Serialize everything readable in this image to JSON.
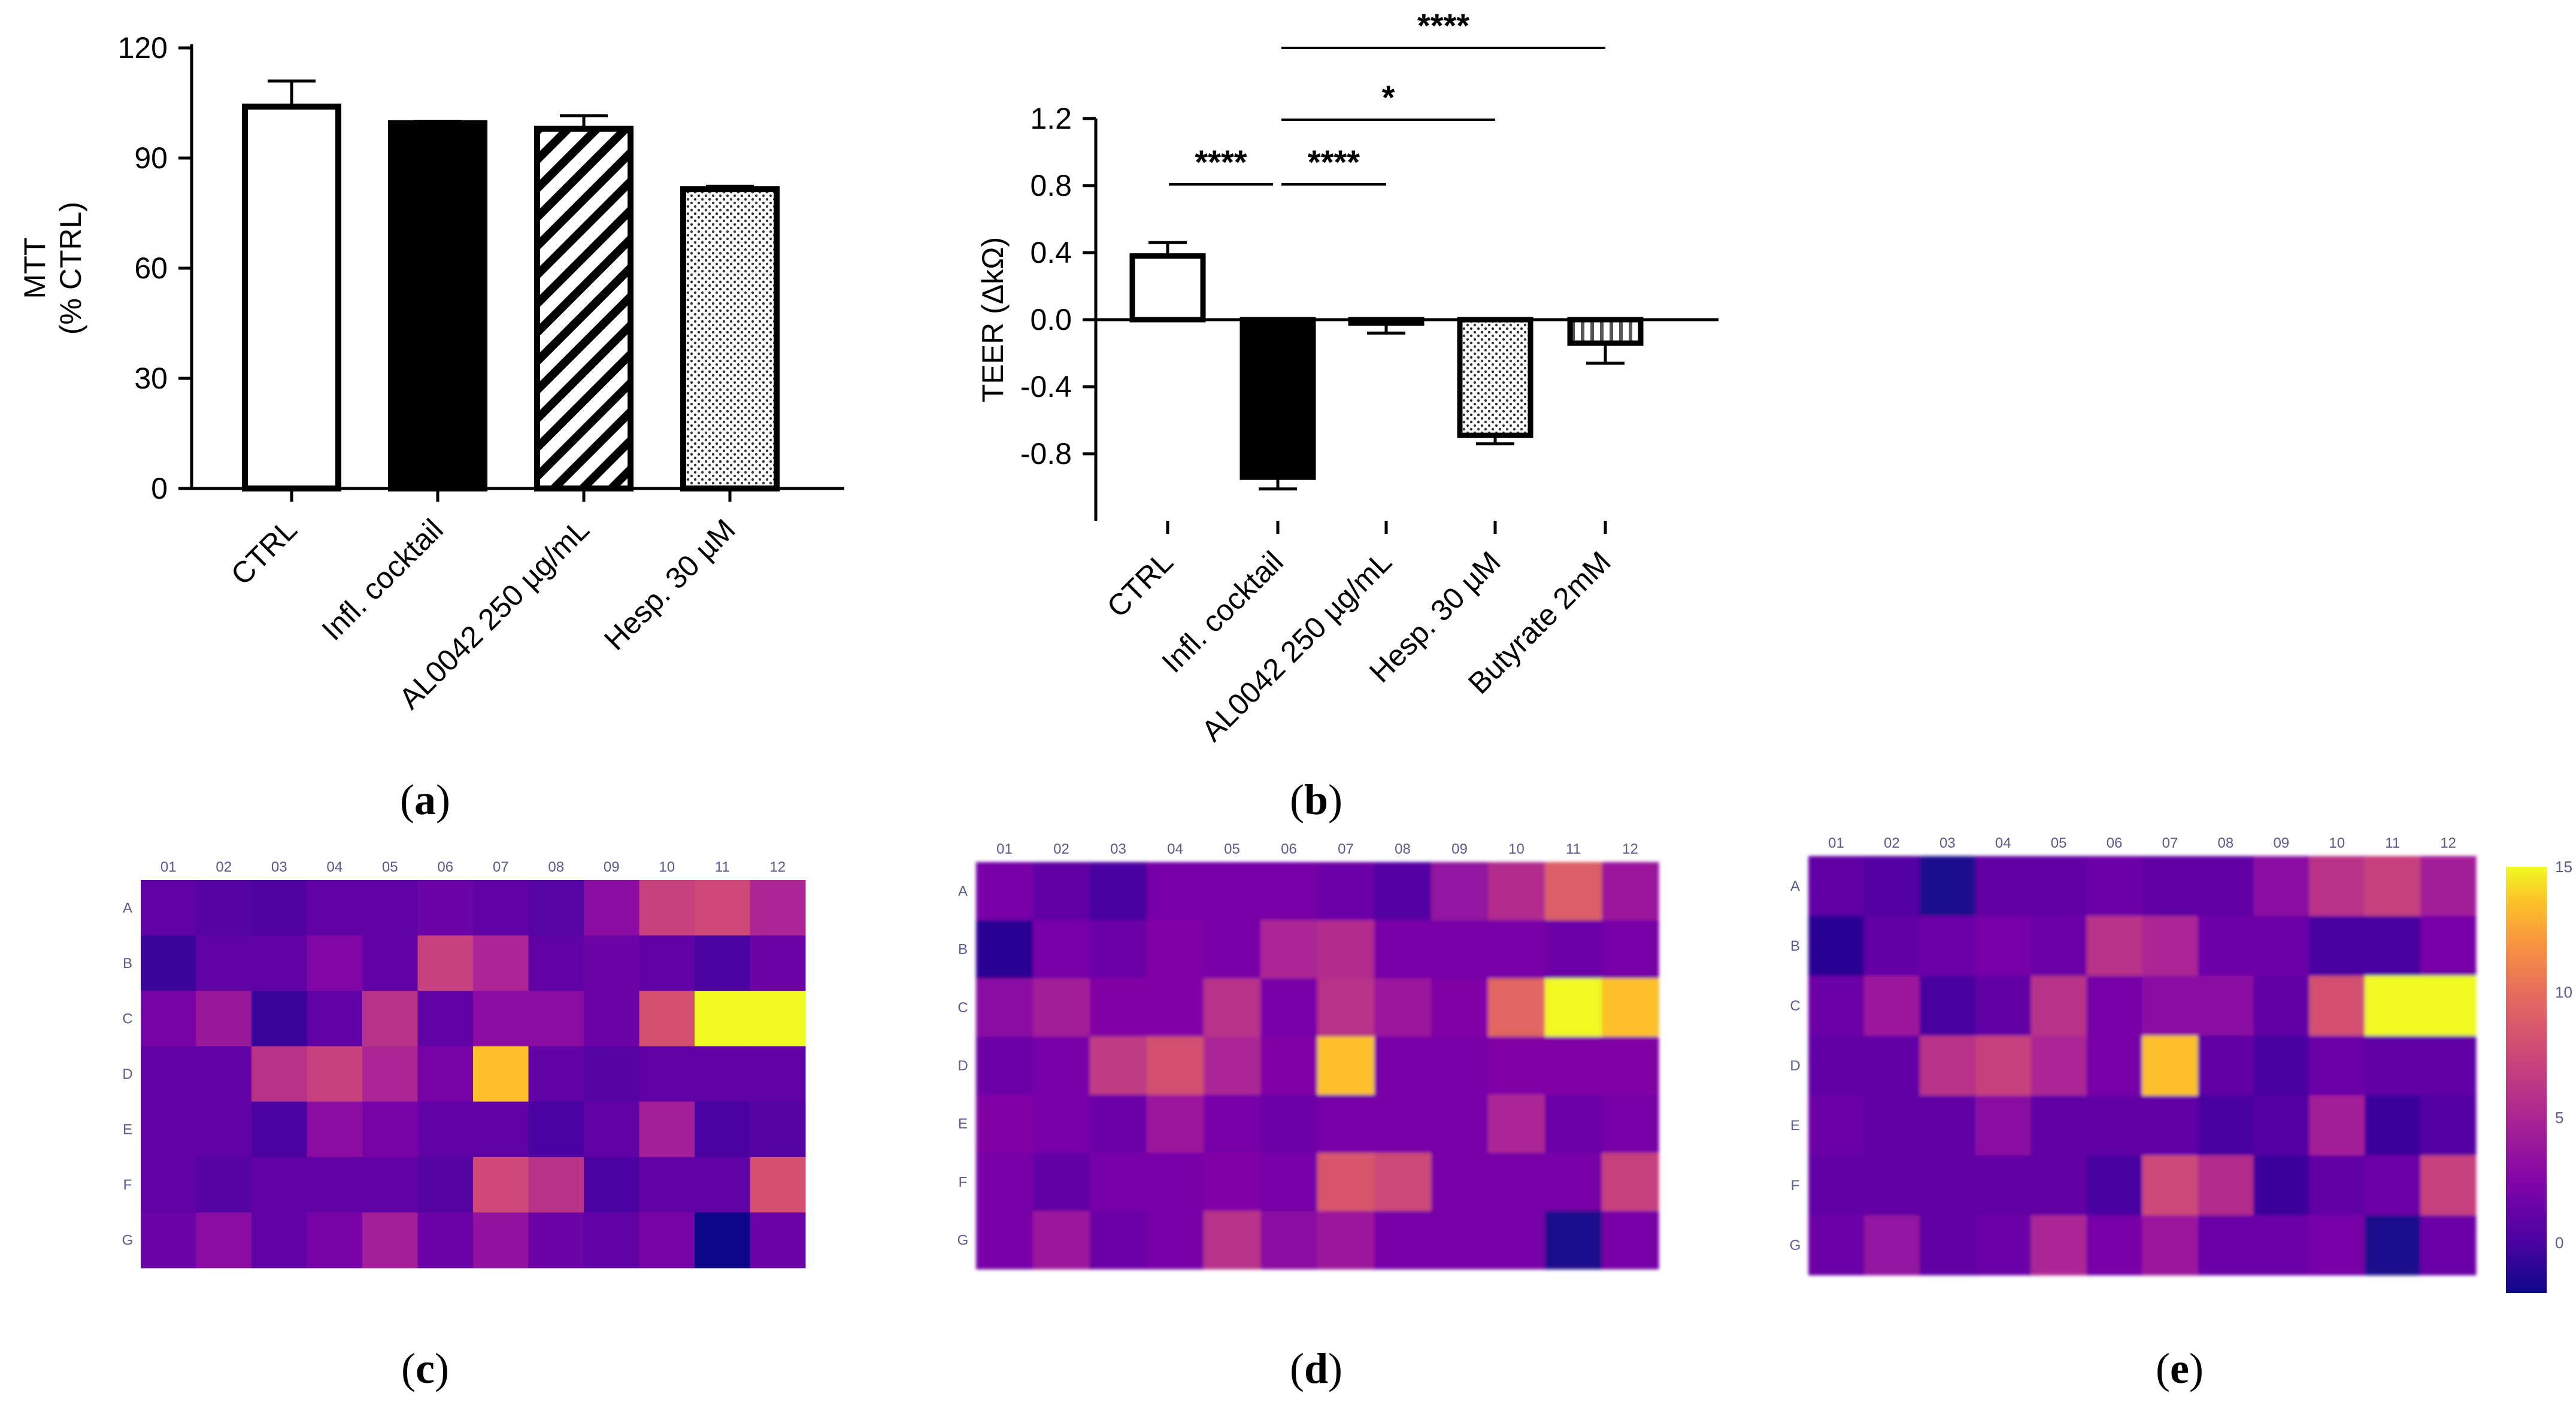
{
  "chart_data": [
    {
      "id": "a",
      "panel_label": "a",
      "type": "bar",
      "ylabel_line1": "MTT",
      "ylabel_line2": "(% CTRL)",
      "ylim": [
        0,
        120
      ],
      "yticks": [
        "0",
        "30",
        "60",
        "90",
        "120"
      ],
      "categories": [
        "CTRL",
        "Infl. cocktail",
        "AL0042 250 µg/mL",
        "Hesp. 30 µM"
      ],
      "values": [
        104,
        99.5,
        98,
        81.5
      ],
      "errors": [
        7,
        0.5,
        3.5,
        0.8
      ],
      "fills": [
        "white",
        "black",
        "diagonal",
        "dots"
      ]
    },
    {
      "id": "b",
      "panel_label": "b",
      "type": "bar",
      "ylabel": "TEER (ΔkΩ)",
      "ylim": [
        -1.2,
        1.2
      ],
      "yticks": [
        "-0.8",
        "-0.4",
        "0.0",
        "0.4",
        "0.8",
        "1.2"
      ],
      "categories": [
        "CTRL",
        "Infl. cocktail",
        "AL0042 250 µg/mL",
        "Hesp. 30 µM",
        "Butyrate 2mM"
      ],
      "values": [
        0.38,
        -0.94,
        -0.02,
        -0.69,
        -0.14
      ],
      "errors": [
        0.08,
        0.07,
        0.06,
        0.05,
        0.12
      ],
      "fills": [
        "white",
        "black",
        "diagonal",
        "dots",
        "vertical"
      ],
      "significance": [
        {
          "from": 0,
          "to": 1,
          "label": "****"
        },
        {
          "from": 1,
          "to": 2,
          "label": "****"
        },
        {
          "from": 1,
          "to": 3,
          "label": "*"
        },
        {
          "from": 1,
          "to": 4,
          "label": "****"
        }
      ]
    },
    {
      "id": "c",
      "panel_label": "c",
      "type": "heatmap",
      "columns": [
        "01",
        "02",
        "03",
        "04",
        "05",
        "06",
        "07",
        "08",
        "09",
        "10",
        "11",
        "12"
      ],
      "rows": [
        "A",
        "B",
        "C",
        "D",
        "E",
        "F",
        "G"
      ],
      "values": [
        [
          1.0,
          0.5,
          0.3,
          1.0,
          1.0,
          1.5,
          1.0,
          0.6,
          3.0,
          7.0,
          7.5,
          5.0
        ],
        [
          -0.5,
          1.0,
          1.0,
          2.5,
          1.0,
          7.0,
          5.0,
          1.0,
          1.5,
          1.0,
          0.0,
          1.5
        ],
        [
          2.0,
          4.0,
          -0.5,
          1.0,
          6.0,
          1.0,
          3.0,
          3.0,
          1.5,
          8.0,
          15.0,
          15.0
        ],
        [
          1.0,
          1.0,
          6.0,
          7.0,
          5.0,
          2.0,
          13.5,
          1.0,
          0.5,
          1.0,
          1.0,
          1.0
        ],
        [
          1.0,
          1.0,
          0.0,
          3.0,
          2.0,
          1.0,
          1.0,
          0.0,
          1.0,
          4.5,
          0.0,
          0.5
        ],
        [
          1.0,
          0.5,
          1.0,
          1.0,
          1.0,
          0.5,
          7.5,
          6.0,
          0.0,
          1.0,
          1.0,
          8.0
        ],
        [
          1.5,
          3.0,
          1.0,
          2.0,
          4.5,
          1.5,
          3.5,
          1.5,
          1.0,
          2.0,
          -2.0,
          1.5
        ]
      ]
    },
    {
      "id": "d",
      "panel_label": "d",
      "type": "heatmap",
      "columns": [
        "01",
        "02",
        "03",
        "04",
        "05",
        "06",
        "07",
        "08",
        "09",
        "10",
        "11",
        "12"
      ],
      "rows": [
        "A",
        "B",
        "C",
        "D",
        "E",
        "F",
        "G"
      ],
      "values": [
        [
          2.0,
          1.0,
          0.0,
          2.0,
          2.0,
          2.0,
          1.5,
          0.5,
          3.5,
          5.5,
          9.0,
          4.0
        ],
        [
          -1.0,
          2.0,
          1.5,
          2.5,
          2.0,
          5.0,
          5.5,
          2.0,
          2.0,
          2.0,
          1.5,
          2.0
        ],
        [
          3.0,
          4.5,
          2.5,
          2.5,
          6.0,
          2.0,
          6.0,
          4.0,
          2.5,
          9.5,
          15.0,
          13.5
        ],
        [
          1.5,
          2.0,
          6.5,
          8.0,
          5.0,
          2.5,
          13.5,
          2.0,
          2.0,
          2.5,
          2.5,
          2.5
        ],
        [
          2.5,
          2.0,
          1.5,
          4.0,
          2.0,
          1.5,
          2.0,
          2.0,
          2.0,
          5.0,
          1.5,
          2.0
        ],
        [
          2.0,
          1.0,
          2.0,
          2.0,
          2.5,
          2.0,
          8.5,
          7.5,
          2.0,
          2.0,
          2.0,
          7.0
        ],
        [
          2.0,
          4.0,
          1.5,
          2.0,
          6.0,
          3.0,
          4.0,
          2.0,
          2.0,
          2.0,
          -1.5,
          2.0
        ]
      ]
    },
    {
      "id": "e",
      "panel_label": "e",
      "type": "heatmap",
      "columns": [
        "01",
        "02",
        "03",
        "04",
        "05",
        "06",
        "07",
        "08",
        "09",
        "10",
        "11",
        "12"
      ],
      "rows": [
        "A",
        "B",
        "C",
        "D",
        "E",
        "F",
        "G"
      ],
      "values": [
        [
          1.0,
          0.5,
          -1.5,
          1.0,
          1.0,
          1.5,
          1.0,
          1.0,
          3.0,
          6.0,
          7.0,
          4.5
        ],
        [
          -1.0,
          1.0,
          1.5,
          2.0,
          1.5,
          6.0,
          5.0,
          1.5,
          1.5,
          0.0,
          0.0,
          2.0
        ],
        [
          1.5,
          4.0,
          0.0,
          1.0,
          6.0,
          2.0,
          3.0,
          3.0,
          1.0,
          8.0,
          15.0,
          15.0
        ],
        [
          1.0,
          1.0,
          6.0,
          7.0,
          5.0,
          2.0,
          13.5,
          1.0,
          0.0,
          1.5,
          1.0,
          1.0
        ],
        [
          1.5,
          1.0,
          1.0,
          3.0,
          1.0,
          1.0,
          1.0,
          0.0,
          0.5,
          4.5,
          -0.5,
          0.5
        ],
        [
          1.0,
          1.0,
          1.0,
          1.0,
          1.0,
          0.0,
          7.5,
          5.5,
          -0.5,
          1.0,
          1.5,
          7.0
        ],
        [
          1.5,
          3.5,
          1.0,
          1.5,
          5.0,
          2.0,
          4.0,
          1.5,
          1.5,
          2.0,
          -1.5,
          1.5
        ]
      ],
      "colorbar": {
        "min": -2,
        "max": 15,
        "ticks": [
          "0",
          "5",
          "10",
          "15"
        ]
      }
    }
  ]
}
